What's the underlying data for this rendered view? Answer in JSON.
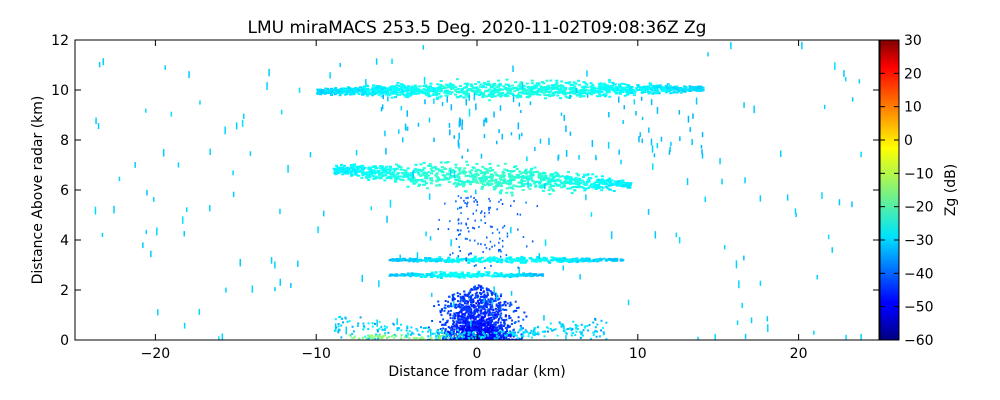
{
  "chart_data": {
    "type": "heatmap",
    "title": "LMU miraMACS 253.5 Deg. 2020-11-02T09:08:36Z  Zg",
    "xlabel": "Distance from radar (km)",
    "ylabel": "Distance Above radar  (km)",
    "xlim": [
      -25,
      25
    ],
    "ylim": [
      0,
      12
    ],
    "xticks": [
      "−20",
      "−10",
      "0",
      "10",
      "20"
    ],
    "xtick_values": [
      -20,
      -10,
      0,
      10,
      20
    ],
    "yticks": [
      "0",
      "2",
      "4",
      "6",
      "8",
      "10",
      "12"
    ],
    "ytick_values": [
      0,
      2,
      4,
      6,
      8,
      10,
      12
    ],
    "grid": false,
    "colorbar": {
      "label": "Zg (dB)",
      "range": [
        -60,
        30
      ],
      "colormap": "jet",
      "ticks": [
        "−60",
        "−50",
        "−40",
        "−30",
        "−20",
        "−10",
        "0",
        "10",
        "20",
        "30"
      ],
      "tick_values": [
        -60,
        -50,
        -40,
        -30,
        -20,
        -10,
        0,
        10,
        20,
        30
      ]
    },
    "echo_layers": [
      {
        "feature": "upper cloud layer",
        "x_range": [
          -10,
          14
        ],
        "z_center": 10.1,
        "zg_db": -30
      },
      {
        "feature": "mid cloud layer",
        "x_range": [
          -9,
          9.5
        ],
        "z_center": 6.5,
        "zg_db": -28
      },
      {
        "feature": "lower thin layer",
        "x_range": [
          -5.5,
          9
        ],
        "z_center": 3.2,
        "zg_db": -32
      },
      {
        "feature": "thin layer",
        "x_range": [
          -5.5,
          4
        ],
        "z_center": 2.6,
        "zg_db": -32
      },
      {
        "feature": "near-radar clutter",
        "x_range": [
          -9,
          8
        ],
        "z_center": 0.6,
        "zg_db": -42
      }
    ]
  }
}
